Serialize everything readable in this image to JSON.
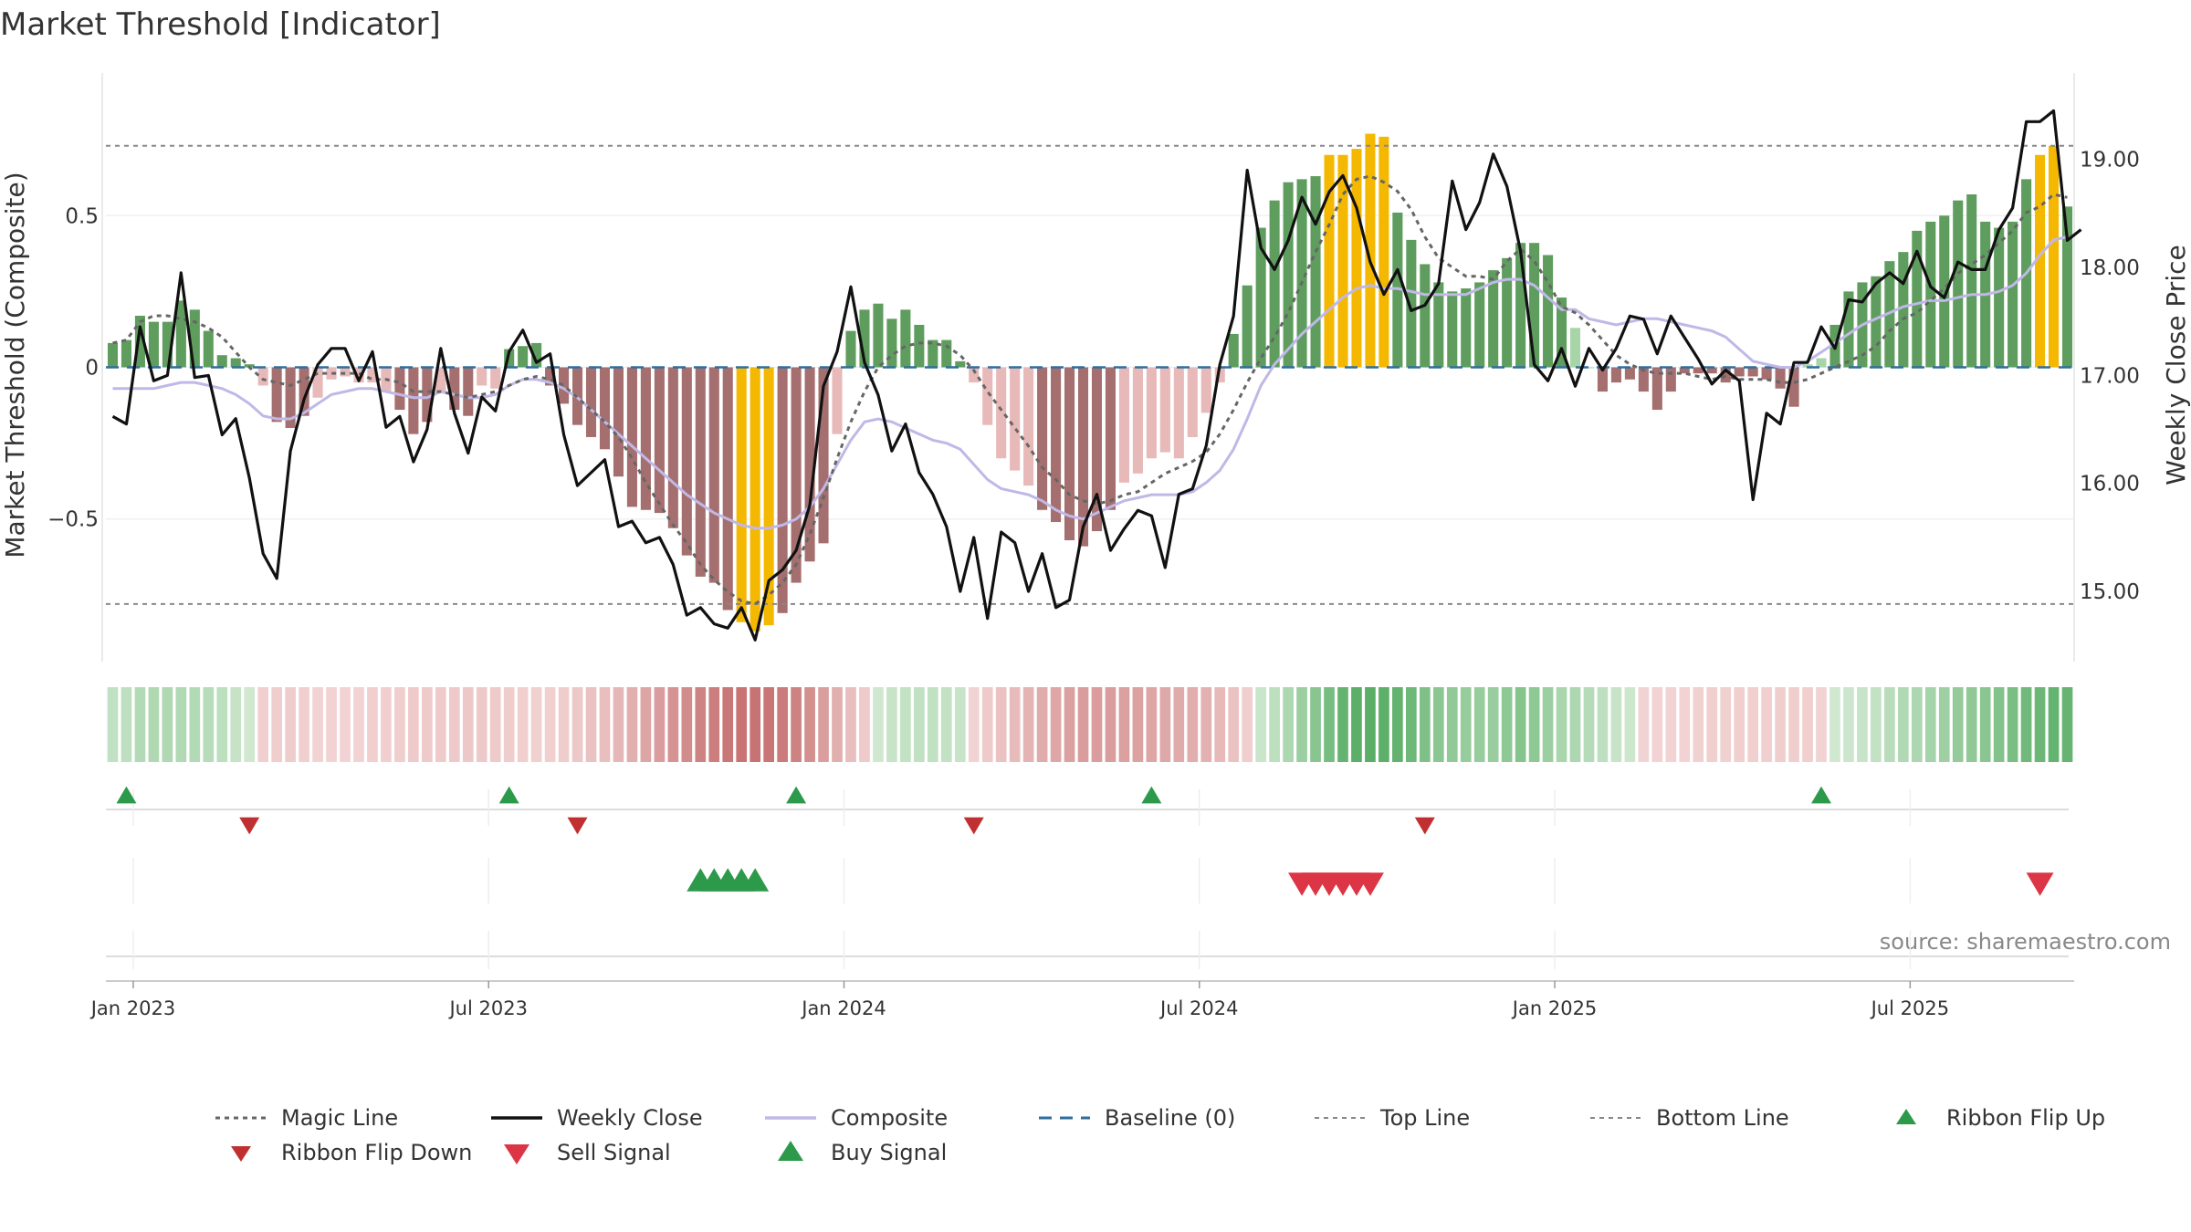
{
  "chart_data": {
    "type": "bar",
    "title": "Market Threshold [Indicator]",
    "ylabel_left": "Market Threshold (Composite)",
    "ylabel_right": "Weekly Close Price",
    "source_note": "source: sharemaestro.com",
    "left_ylim": [
      -0.97,
      0.97
    ],
    "right_ylim": [
      14.35,
      19.8
    ],
    "left_ticks": [
      {
        "value": 0.5,
        "label": "0.5"
      },
      {
        "value": 0,
        "label": "0"
      },
      {
        "value": -0.5,
        "label": "−0.5"
      }
    ],
    "right_ticks": [
      {
        "value": 19,
        "label": "19.00"
      },
      {
        "value": 18,
        "label": "18.00"
      },
      {
        "value": 17,
        "label": "17.00"
      },
      {
        "value": 16,
        "label": "16.00"
      },
      {
        "value": 15,
        "label": "15.00"
      }
    ],
    "x_ticks": [
      {
        "week": 1.5,
        "label": "Jan 2023"
      },
      {
        "week": 27.5,
        "label": "Jul 2023"
      },
      {
        "week": 53.5,
        "label": "Jan 2024"
      },
      {
        "week": 79.5,
        "label": "Jul 2024"
      },
      {
        "week": 105.5,
        "label": "Jan 2025"
      },
      {
        "week": 131.5,
        "label": "Jul 2025"
      }
    ],
    "weeks": 144,
    "top_line": 0.73,
    "bottom_line": -0.78,
    "baseline": 0,
    "colors": {
      "bull_strong": "#5f9d5f",
      "bull_light": "#a8d5a8",
      "bear_strong": "#a56f6f",
      "bear_light": "#e8b9b9",
      "extreme": "#f5b800",
      "weekly_close": "#111111",
      "composite": "#c0b8e6",
      "magic_line": "#666666",
      "baseline": "#2f6e9e",
      "threshold_lines": "#888888",
      "ribbon_up": "#2c9a4a",
      "ribbon_down": "#c03030",
      "sell_signal": "#dc3545",
      "buy_signal": "#2c9a4a"
    },
    "composite_bars": [
      0.08,
      0.09,
      0.17,
      0.15,
      0.15,
      0.22,
      0.19,
      0.12,
      0.04,
      0.03,
      0.01,
      -0.06,
      -0.18,
      -0.2,
      -0.16,
      -0.1,
      -0.04,
      -0.03,
      -0.05,
      -0.05,
      -0.08,
      -0.14,
      -0.22,
      -0.18,
      -0.08,
      -0.14,
      -0.16,
      -0.06,
      -0.07,
      0.06,
      0.07,
      0.08,
      -0.06,
      -0.12,
      -0.19,
      -0.23,
      -0.27,
      -0.36,
      -0.46,
      -0.47,
      -0.48,
      -0.53,
      -0.62,
      -0.69,
      -0.71,
      -0.8,
      -0.84,
      -0.87,
      -0.85,
      -0.81,
      -0.71,
      -0.64,
      -0.58,
      -0.22,
      0.12,
      0.19,
      0.21,
      0.16,
      0.19,
      0.14,
      0.09,
      0.09,
      0.02,
      -0.05,
      -0.19,
      -0.3,
      -0.34,
      -0.39,
      -0.47,
      -0.51,
      -0.57,
      -0.59,
      -0.54,
      -0.47,
      -0.38,
      -0.35,
      -0.3,
      -0.28,
      -0.3,
      -0.23,
      -0.15,
      -0.05,
      0.11,
      0.27,
      0.46,
      0.55,
      0.61,
      0.62,
      0.63,
      0.7,
      0.7,
      0.72,
      0.77,
      0.76,
      0.51,
      0.42,
      0.34,
      0.28,
      0.25,
      0.26,
      0.28,
      0.32,
      0.36,
      0.41,
      0.41,
      0.37,
      0.23,
      0.13,
      0.0,
      -0.08,
      -0.05,
      -0.04,
      -0.08,
      -0.14,
      -0.08,
      -0.02,
      -0.02,
      -0.02,
      -0.05,
      -0.03,
      -0.03,
      -0.04,
      -0.07,
      -0.13,
      0.01,
      0.03,
      0.14,
      0.25,
      0.28,
      0.3,
      0.35,
      0.38,
      0.45,
      0.48,
      0.5,
      0.55,
      0.57,
      0.48,
      0.46,
      0.48,
      0.62,
      0.7,
      0.73,
      0.53
    ],
    "weekly_close": [
      16.62,
      16.55,
      17.45,
      16.95,
      17.0,
      17.95,
      16.98,
      17.0,
      16.45,
      16.6,
      16.05,
      15.35,
      15.12,
      16.3,
      16.78,
      17.1,
      17.25,
      17.25,
      16.95,
      17.22,
      16.52,
      16.62,
      16.2,
      16.5,
      17.25,
      16.65,
      16.28,
      16.8,
      16.67,
      17.22,
      17.42,
      17.12,
      17.2,
      16.45,
      15.98,
      16.1,
      16.22,
      15.6,
      15.65,
      15.45,
      15.5,
      15.25,
      14.78,
      14.85,
      14.7,
      14.66,
      14.85,
      14.55,
      15.1,
      15.2,
      15.38,
      15.8,
      16.9,
      17.22,
      17.82,
      17.12,
      16.82,
      16.3,
      16.55,
      16.1,
      15.9,
      15.6,
      15.0,
      15.5,
      14.75,
      15.55,
      15.45,
      15.0,
      15.35,
      14.85,
      14.92,
      15.6,
      15.9,
      15.38,
      15.58,
      15.75,
      15.7,
      15.22,
      15.9,
      15.95,
      16.35,
      17.1,
      17.55,
      18.9,
      18.18,
      17.98,
      18.25,
      18.65,
      18.4,
      18.7,
      18.85,
      18.55,
      18.05,
      17.75,
      17.98,
      17.6,
      17.65,
      17.85,
      18.8,
      18.35,
      18.6,
      19.05,
      18.75,
      18.15,
      17.1,
      16.95,
      17.25,
      16.9,
      17.25,
      17.05,
      17.25,
      17.55,
      17.52,
      17.2,
      17.55,
      17.35,
      17.15,
      16.92,
      17.05,
      16.95,
      15.85,
      16.65,
      16.55,
      17.12,
      17.12,
      17.45,
      17.25,
      17.7,
      17.68,
      17.85,
      17.95,
      17.85,
      18.15,
      17.82,
      17.72,
      18.05,
      17.98,
      17.98,
      18.35,
      18.55,
      19.35,
      19.35,
      19.45,
      18.25,
      18.35
    ],
    "composite_line": [
      -0.07,
      -0.07,
      -0.07,
      -0.07,
      -0.06,
      -0.05,
      -0.05,
      -0.06,
      -0.07,
      -0.09,
      -0.12,
      -0.16,
      -0.17,
      -0.17,
      -0.15,
      -0.12,
      -0.09,
      -0.08,
      -0.07,
      -0.07,
      -0.08,
      -0.09,
      -0.1,
      -0.1,
      -0.08,
      -0.09,
      -0.1,
      -0.1,
      -0.09,
      -0.06,
      -0.04,
      -0.04,
      -0.05,
      -0.07,
      -0.1,
      -0.14,
      -0.18,
      -0.22,
      -0.26,
      -0.3,
      -0.34,
      -0.38,
      -0.42,
      -0.45,
      -0.48,
      -0.5,
      -0.52,
      -0.53,
      -0.53,
      -0.52,
      -0.5,
      -0.46,
      -0.4,
      -0.32,
      -0.24,
      -0.18,
      -0.17,
      -0.18,
      -0.2,
      -0.22,
      -0.24,
      -0.25,
      -0.27,
      -0.32,
      -0.37,
      -0.4,
      -0.41,
      -0.42,
      -0.44,
      -0.47,
      -0.49,
      -0.5,
      -0.48,
      -0.46,
      -0.44,
      -0.43,
      -0.42,
      -0.42,
      -0.42,
      -0.41,
      -0.38,
      -0.34,
      -0.27,
      -0.17,
      -0.06,
      0.01,
      0.06,
      0.11,
      0.15,
      0.19,
      0.23,
      0.26,
      0.27,
      0.26,
      0.26,
      0.25,
      0.24,
      0.24,
      0.24,
      0.24,
      0.26,
      0.28,
      0.29,
      0.29,
      0.27,
      0.23,
      0.19,
      0.19,
      0.16,
      0.15,
      0.14,
      0.15,
      0.16,
      0.16,
      0.15,
      0.14,
      0.13,
      0.12,
      0.1,
      0.06,
      0.02,
      0.01,
      0.0,
      0.0,
      0.02,
      0.05,
      0.08,
      0.11,
      0.14,
      0.16,
      0.18,
      0.2,
      0.21,
      0.22,
      0.22,
      0.23,
      0.24,
      0.24,
      0.25,
      0.27,
      0.31,
      0.37,
      0.42,
      0.43
    ],
    "magic_line": [
      0.08,
      0.09,
      0.15,
      0.17,
      0.17,
      0.16,
      0.15,
      0.13,
      0.1,
      0.05,
      0.0,
      -0.04,
      -0.05,
      -0.06,
      -0.04,
      -0.02,
      -0.02,
      -0.02,
      -0.02,
      -0.04,
      -0.04,
      -0.05,
      -0.08,
      -0.08,
      -0.08,
      -0.09,
      -0.1,
      -0.09,
      -0.08,
      -0.06,
      -0.04,
      -0.03,
      -0.04,
      -0.06,
      -0.1,
      -0.14,
      -0.18,
      -0.23,
      -0.3,
      -0.38,
      -0.45,
      -0.52,
      -0.58,
      -0.65,
      -0.7,
      -0.74,
      -0.77,
      -0.78,
      -0.75,
      -0.71,
      -0.65,
      -0.55,
      -0.43,
      -0.3,
      -0.18,
      -0.08,
      0.0,
      0.04,
      0.07,
      0.08,
      0.08,
      0.07,
      0.04,
      -0.01,
      -0.08,
      -0.14,
      -0.2,
      -0.26,
      -0.33,
      -0.37,
      -0.42,
      -0.44,
      -0.45,
      -0.44,
      -0.42,
      -0.41,
      -0.38,
      -0.35,
      -0.33,
      -0.31,
      -0.28,
      -0.22,
      -0.14,
      -0.05,
      0.03,
      0.1,
      0.18,
      0.28,
      0.38,
      0.47,
      0.57,
      0.62,
      0.63,
      0.61,
      0.58,
      0.52,
      0.43,
      0.36,
      0.33,
      0.3,
      0.3,
      0.29,
      0.35,
      0.39,
      0.35,
      0.28,
      0.2,
      0.18,
      0.14,
      0.09,
      0.04,
      0.01,
      -0.01,
      -0.02,
      -0.02,
      -0.02,
      -0.03,
      -0.04,
      -0.03,
      -0.04,
      -0.04,
      -0.04,
      -0.05,
      -0.05,
      -0.04,
      -0.02,
      0.0,
      0.02,
      0.04,
      0.07,
      0.12,
      0.16,
      0.18,
      0.22,
      0.26,
      0.31,
      0.34,
      0.37,
      0.41,
      0.45,
      0.51,
      0.53,
      0.57,
      0.56
    ],
    "ribbon_flip_up_weeks": [
      1,
      29,
      50,
      76,
      125
    ],
    "ribbon_flip_down_weeks": [
      10,
      34,
      63,
      96
    ],
    "buy_signal_weeks": [
      43,
      44,
      45,
      46,
      47
    ],
    "sell_signal_weeks": [
      87,
      88,
      89,
      90,
      91,
      92,
      141
    ],
    "legend": [
      {
        "key": "magic",
        "label": "Magic Line"
      },
      {
        "key": "close",
        "label": "Weekly Close"
      },
      {
        "key": "composite",
        "label": "Composite"
      },
      {
        "key": "baseline",
        "label": "Baseline (0)"
      },
      {
        "key": "top",
        "label": "Top Line"
      },
      {
        "key": "bottom",
        "label": "Bottom Line"
      },
      {
        "key": "flipup",
        "label": "Ribbon Flip Up"
      },
      {
        "key": "flipdown",
        "label": "Ribbon Flip Down"
      },
      {
        "key": "sell",
        "label": "Sell Signal"
      },
      {
        "key": "buy",
        "label": "Buy Signal"
      }
    ]
  }
}
